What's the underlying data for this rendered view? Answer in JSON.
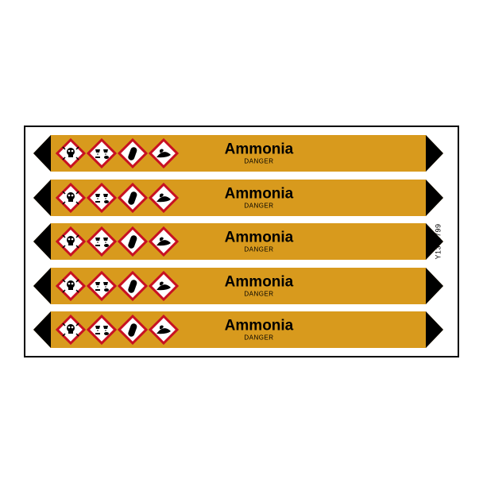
{
  "product_code": "Y1378799",
  "colors": {
    "band": "#d89a1d",
    "arrow": "#000000",
    "ghs_border": "#c81022",
    "ghs_fill": "#ffffff",
    "text": "#000000"
  },
  "marker": {
    "substance": "Ammonia",
    "signal_word": "DANGER",
    "hazard_pictograms": [
      "skull",
      "corrosion",
      "gas-cylinder",
      "environment"
    ]
  },
  "row_count": 5
}
